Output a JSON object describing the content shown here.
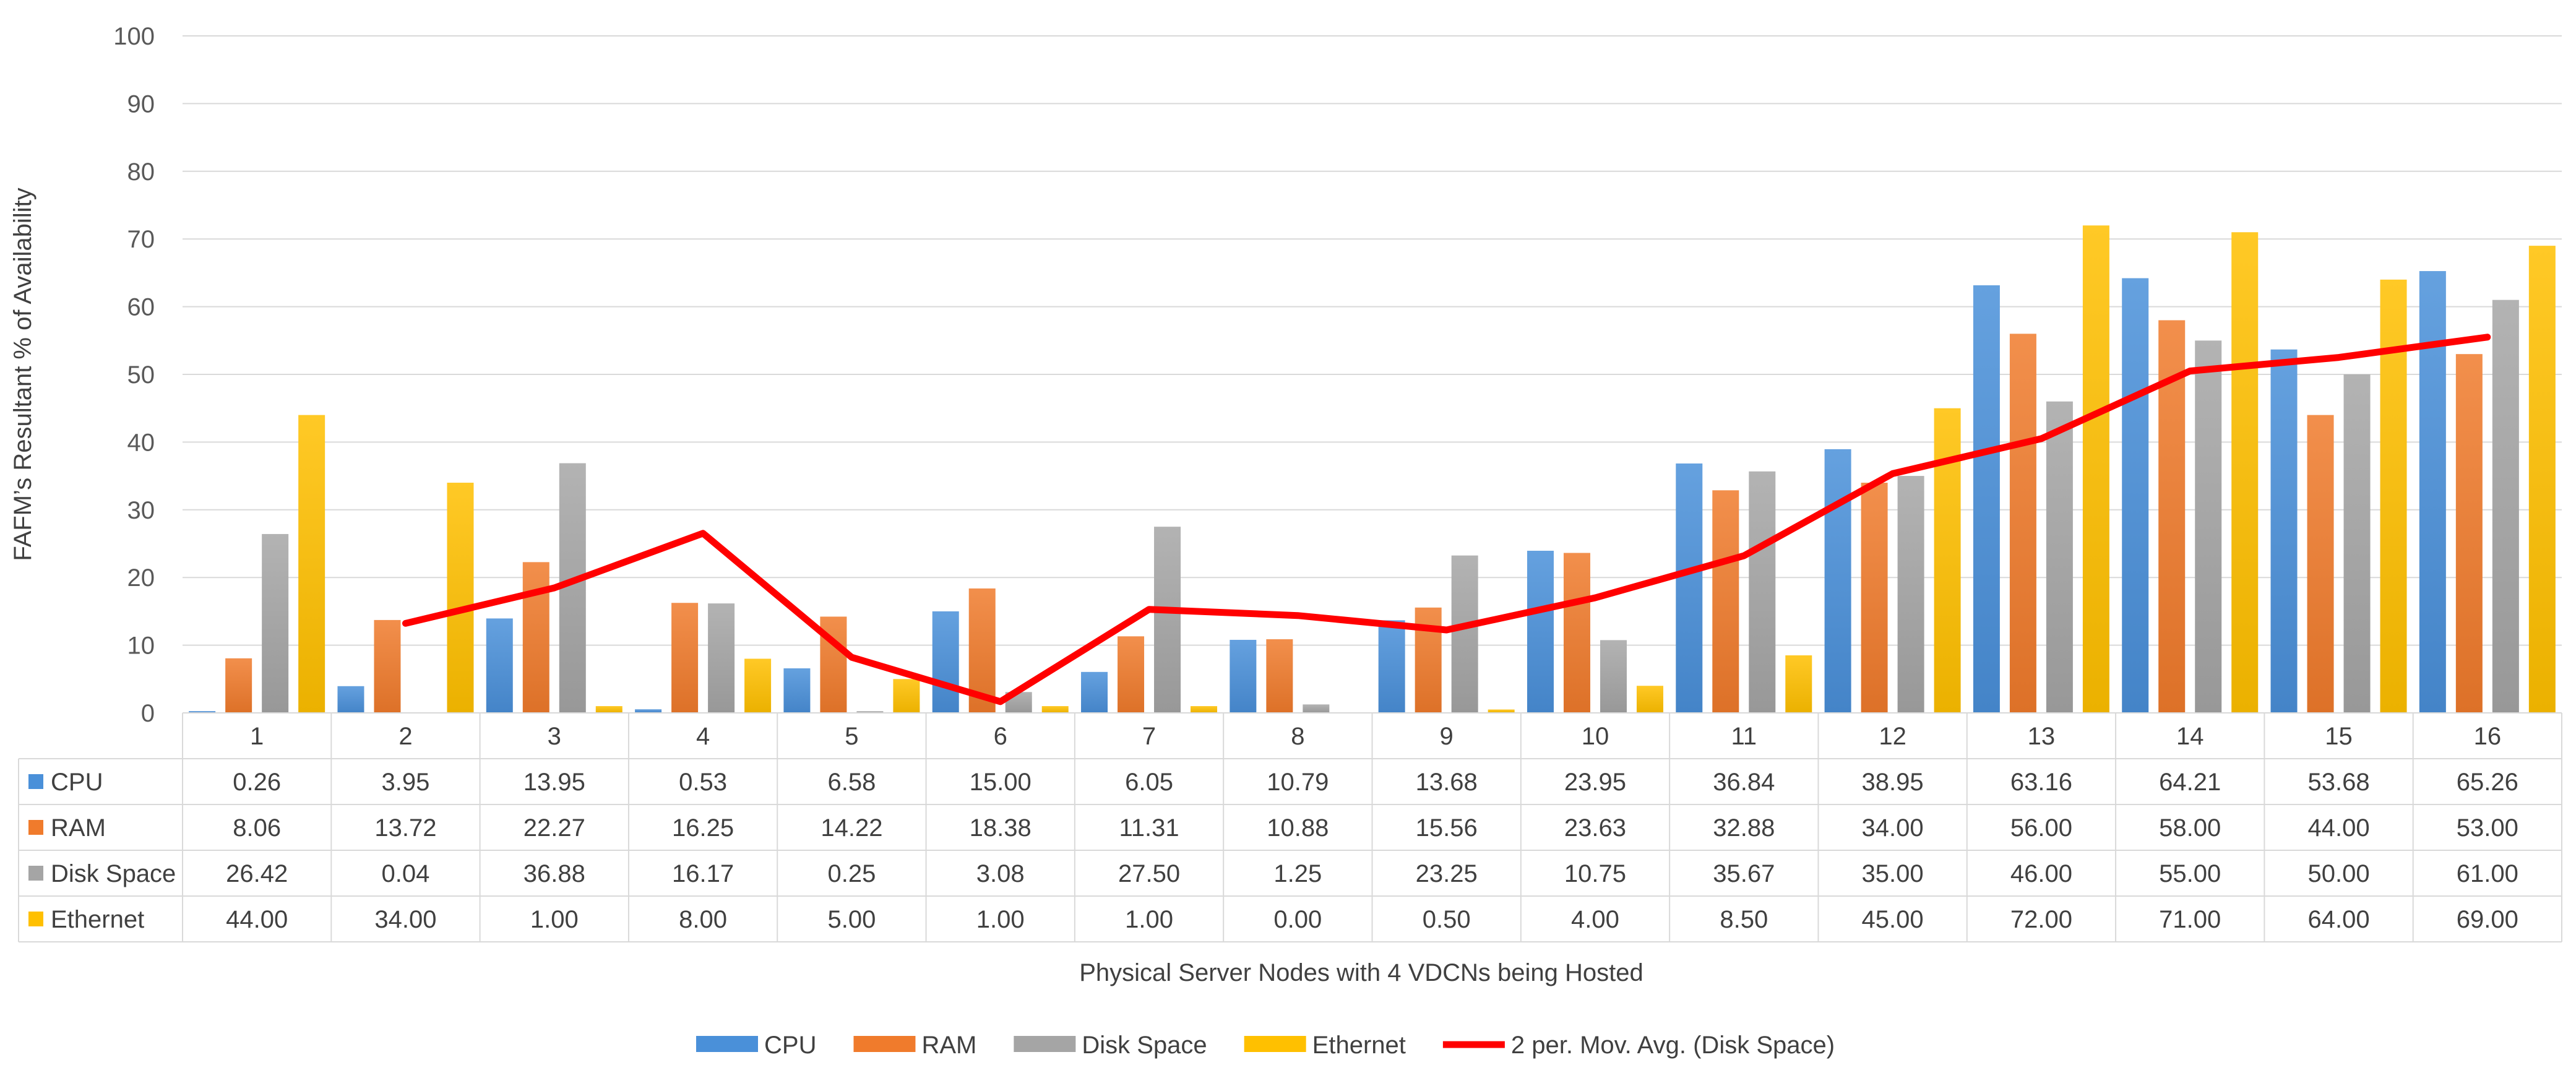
{
  "chart_data": {
    "type": "bar",
    "ylabel": "FAFM’s Resultant % of Availability",
    "xlabel": "Physical Server Nodes with 4 VDCNs being Hosted",
    "ylim": [
      0,
      100
    ],
    "yticks": [
      0,
      10,
      20,
      30,
      40,
      50,
      60,
      70,
      80,
      90,
      100
    ],
    "grid": true,
    "legend_position": "bottom",
    "data_table": true,
    "categories": [
      "1",
      "2",
      "3",
      "4",
      "5",
      "6",
      "7",
      "8",
      "9",
      "10",
      "11",
      "12",
      "13",
      "14",
      "15",
      "16"
    ],
    "series": [
      {
        "name": "CPU",
        "color": "#4a90d9",
        "values": [
          0.26,
          3.95,
          13.95,
          0.53,
          6.58,
          15.0,
          6.05,
          10.79,
          13.68,
          23.95,
          36.84,
          38.95,
          63.16,
          64.21,
          53.68,
          65.26
        ],
        "labels": [
          "0.26",
          "3.95",
          "13.95",
          "0.53",
          "6.58",
          "15.00",
          "6.05",
          "10.79",
          "13.68",
          "23.95",
          "36.84",
          "38.95",
          "63.16",
          "64.21",
          "53.68",
          "65.26"
        ]
      },
      {
        "name": "RAM",
        "color": "#f07b2c",
        "values": [
          8.06,
          13.72,
          22.27,
          16.25,
          14.22,
          18.38,
          11.31,
          10.88,
          15.56,
          23.63,
          32.88,
          34.0,
          56.0,
          58.0,
          44.0,
          53.0
        ],
        "labels": [
          "8.06",
          "13.72",
          "22.27",
          "16.25",
          "14.22",
          "18.38",
          "11.31",
          "10.88",
          "15.56",
          "23.63",
          "32.88",
          "34.00",
          "56.00",
          "58.00",
          "44.00",
          "53.00"
        ]
      },
      {
        "name": "Disk Space",
        "color": "#a5a5a5",
        "values": [
          26.42,
          0.04,
          36.88,
          16.17,
          0.25,
          3.08,
          27.5,
          1.25,
          23.25,
          10.75,
          35.67,
          35.0,
          46.0,
          55.0,
          50.0,
          61.0
        ],
        "labels": [
          "26.42",
          "0.04",
          "36.88",
          "16.17",
          "0.25",
          "3.08",
          "27.50",
          "1.25",
          "23.25",
          "10.75",
          "35.67",
          "35.00",
          "46.00",
          "55.00",
          "50.00",
          "61.00"
        ]
      },
      {
        "name": "Ethernet",
        "color": "#ffc000",
        "values": [
          44.0,
          34.0,
          1.0,
          8.0,
          5.0,
          1.0,
          1.0,
          0.0,
          0.5,
          4.0,
          8.5,
          45.0,
          72.0,
          71.0,
          64.0,
          69.0
        ],
        "labels": [
          "44.00",
          "34.00",
          "1.00",
          "8.00",
          "5.00",
          "1.00",
          "1.00",
          "0.00",
          "0.50",
          "4.00",
          "8.50",
          "45.00",
          "72.00",
          "71.00",
          "64.00",
          "69.00"
        ]
      }
    ],
    "trendline": {
      "name": "2 per. Mov. Avg. (Disk Space)",
      "type": "moving_average",
      "period": 2,
      "source_series": "Disk Space",
      "color": "#ff0000"
    }
  }
}
